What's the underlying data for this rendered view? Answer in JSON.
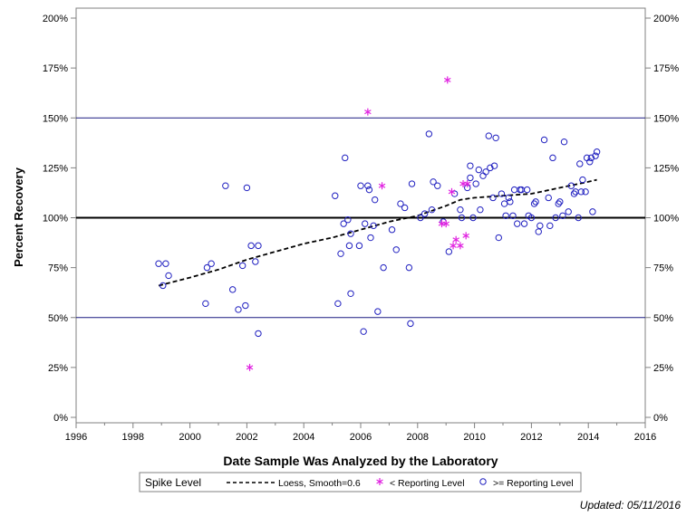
{
  "chart_data": {
    "type": "scatter",
    "xlabel": "Date Sample Was Analyzed by the Laboratory",
    "ylabel": "Percent Recovery",
    "xlim": [
      1996,
      2016
    ],
    "ylim": [
      0,
      200
    ],
    "xticks": [
      "1996",
      "1998",
      "2000",
      "2002",
      "2004",
      "2006",
      "2008",
      "2010",
      "2012",
      "2014",
      "2016"
    ],
    "yticks": [
      "0%",
      "25%",
      "50%",
      "75%",
      "100%",
      "125%",
      "150%",
      "175%",
      "200%"
    ],
    "reference_lines": [
      {
        "y": 100,
        "style": "thick",
        "color": "#000000"
      },
      {
        "y": 150,
        "style": "thin",
        "color": "#1a1a80"
      },
      {
        "y": 50,
        "style": "thin",
        "color": "#1a1a80"
      }
    ],
    "legend": {
      "title": "Spike Level",
      "position": "bottom",
      "entries": [
        {
          "label": "Loess, Smooth=0.6",
          "marker": "dashed-line",
          "color": "#000000"
        },
        {
          "label": "< Reporting Level",
          "marker": "asterisk",
          "color": "#e020e0"
        },
        {
          "label": ">= Reporting Level",
          "marker": "circle",
          "color": "#2020c0"
        }
      ]
    },
    "series": [
      {
        "name": ">= Reporting Level",
        "marker": "circle",
        "color": "#2020c0",
        "points": [
          [
            1998.9,
            77
          ],
          [
            1999.05,
            66
          ],
          [
            1999.15,
            77
          ],
          [
            1999.25,
            71
          ],
          [
            2000.55,
            57
          ],
          [
            2000.6,
            75
          ],
          [
            2000.75,
            77
          ],
          [
            2001.25,
            116
          ],
          [
            2001.5,
            64
          ],
          [
            2001.7,
            54
          ],
          [
            2001.85,
            76
          ],
          [
            2001.95,
            56
          ],
          [
            2002.0,
            115
          ],
          [
            2002.15,
            86
          ],
          [
            2002.3,
            78
          ],
          [
            2002.4,
            42
          ],
          [
            2002.4,
            86
          ],
          [
            2005.1,
            111
          ],
          [
            2005.2,
            57
          ],
          [
            2005.3,
            82
          ],
          [
            2005.4,
            97
          ],
          [
            2005.45,
            130
          ],
          [
            2005.55,
            99
          ],
          [
            2005.6,
            86
          ],
          [
            2005.65,
            62
          ],
          [
            2005.65,
            92
          ],
          [
            2005.95,
            86
          ],
          [
            2006.0,
            116
          ],
          [
            2006.1,
            43
          ],
          [
            2006.15,
            97
          ],
          [
            2006.25,
            116
          ],
          [
            2006.3,
            114
          ],
          [
            2006.35,
            90
          ],
          [
            2006.45,
            96
          ],
          [
            2006.5,
            109
          ],
          [
            2006.6,
            53
          ],
          [
            2006.8,
            75
          ],
          [
            2007.1,
            94
          ],
          [
            2007.25,
            84
          ],
          [
            2007.4,
            107
          ],
          [
            2007.55,
            105
          ],
          [
            2007.7,
            75
          ],
          [
            2007.75,
            47
          ],
          [
            2007.8,
            117
          ],
          [
            2008.1,
            100
          ],
          [
            2008.25,
            102
          ],
          [
            2008.4,
            142
          ],
          [
            2008.5,
            104
          ],
          [
            2008.55,
            118
          ],
          [
            2008.7,
            116
          ],
          [
            2008.9,
            98
          ],
          [
            2009.1,
            83
          ],
          [
            2009.3,
            112
          ],
          [
            2009.5,
            104
          ],
          [
            2009.55,
            100
          ],
          [
            2009.75,
            115
          ],
          [
            2009.85,
            126
          ],
          [
            2009.95,
            100
          ],
          [
            2009.85,
            120
          ],
          [
            2010.05,
            117
          ],
          [
            2010.15,
            124
          ],
          [
            2010.2,
            104
          ],
          [
            2010.3,
            121
          ],
          [
            2010.4,
            123
          ],
          [
            2010.5,
            141
          ],
          [
            2010.55,
            125
          ],
          [
            2010.65,
            110
          ],
          [
            2010.7,
            126
          ],
          [
            2010.75,
            140
          ],
          [
            2010.85,
            90
          ],
          [
            2010.95,
            112
          ],
          [
            2011.05,
            107
          ],
          [
            2011.1,
            101
          ],
          [
            2011.2,
            110
          ],
          [
            2011.25,
            108
          ],
          [
            2011.35,
            101
          ],
          [
            2011.4,
            114
          ],
          [
            2011.5,
            97
          ],
          [
            2011.6,
            114
          ],
          [
            2011.65,
            114
          ],
          [
            2011.75,
            97
          ],
          [
            2011.85,
            114
          ],
          [
            2011.9,
            101
          ],
          [
            2012.0,
            100
          ],
          [
            2012.1,
            107
          ],
          [
            2012.15,
            108
          ],
          [
            2012.25,
            93
          ],
          [
            2012.3,
            96
          ],
          [
            2012.45,
            139
          ],
          [
            2012.6,
            110
          ],
          [
            2012.65,
            96
          ],
          [
            2012.75,
            130
          ],
          [
            2012.85,
            100
          ],
          [
            2012.95,
            107
          ],
          [
            2013.0,
            108
          ],
          [
            2013.1,
            101
          ],
          [
            2013.15,
            138
          ],
          [
            2013.3,
            103
          ],
          [
            2013.4,
            116
          ],
          [
            2013.5,
            112
          ],
          [
            2013.55,
            113
          ],
          [
            2013.65,
            100
          ],
          [
            2013.7,
            127
          ],
          [
            2013.75,
            113
          ],
          [
            2013.8,
            119
          ],
          [
            2013.9,
            113
          ],
          [
            2013.95,
            130
          ],
          [
            2014.05,
            128
          ],
          [
            2014.1,
            130
          ],
          [
            2014.15,
            103
          ],
          [
            2014.25,
            131
          ],
          [
            2014.3,
            133
          ]
        ]
      },
      {
        "name": "< Reporting Level",
        "marker": "asterisk",
        "color": "#e020e0",
        "points": [
          [
            2002.1,
            25
          ],
          [
            2006.25,
            153
          ],
          [
            2006.75,
            116
          ],
          [
            2008.85,
            97
          ],
          [
            2009.0,
            97
          ],
          [
            2009.05,
            169
          ],
          [
            2009.2,
            113
          ],
          [
            2009.25,
            86
          ],
          [
            2009.35,
            89
          ],
          [
            2009.5,
            86
          ],
          [
            2009.6,
            117
          ],
          [
            2009.7,
            91
          ],
          [
            2009.75,
            117
          ]
        ]
      },
      {
        "name": "Loess, Smooth=0.6",
        "marker": "dashed-line",
        "color": "#000000",
        "points": [
          [
            1998.9,
            66
          ],
          [
            2000.0,
            70
          ],
          [
            2001.0,
            74
          ],
          [
            2002.0,
            79
          ],
          [
            2003.0,
            83
          ],
          [
            2004.0,
            87
          ],
          [
            2005.0,
            90
          ],
          [
            2006.0,
            94
          ],
          [
            2007.0,
            98
          ],
          [
            2008.0,
            101
          ],
          [
            2009.0,
            106
          ],
          [
            2009.5,
            109
          ],
          [
            2010.0,
            110
          ],
          [
            2011.0,
            111
          ],
          [
            2012.0,
            112
          ],
          [
            2013.0,
            115
          ],
          [
            2014.0,
            118
          ],
          [
            2014.3,
            119
          ]
        ]
      }
    ]
  },
  "footer": {
    "updated_text": "Updated: 05/11/2016"
  }
}
